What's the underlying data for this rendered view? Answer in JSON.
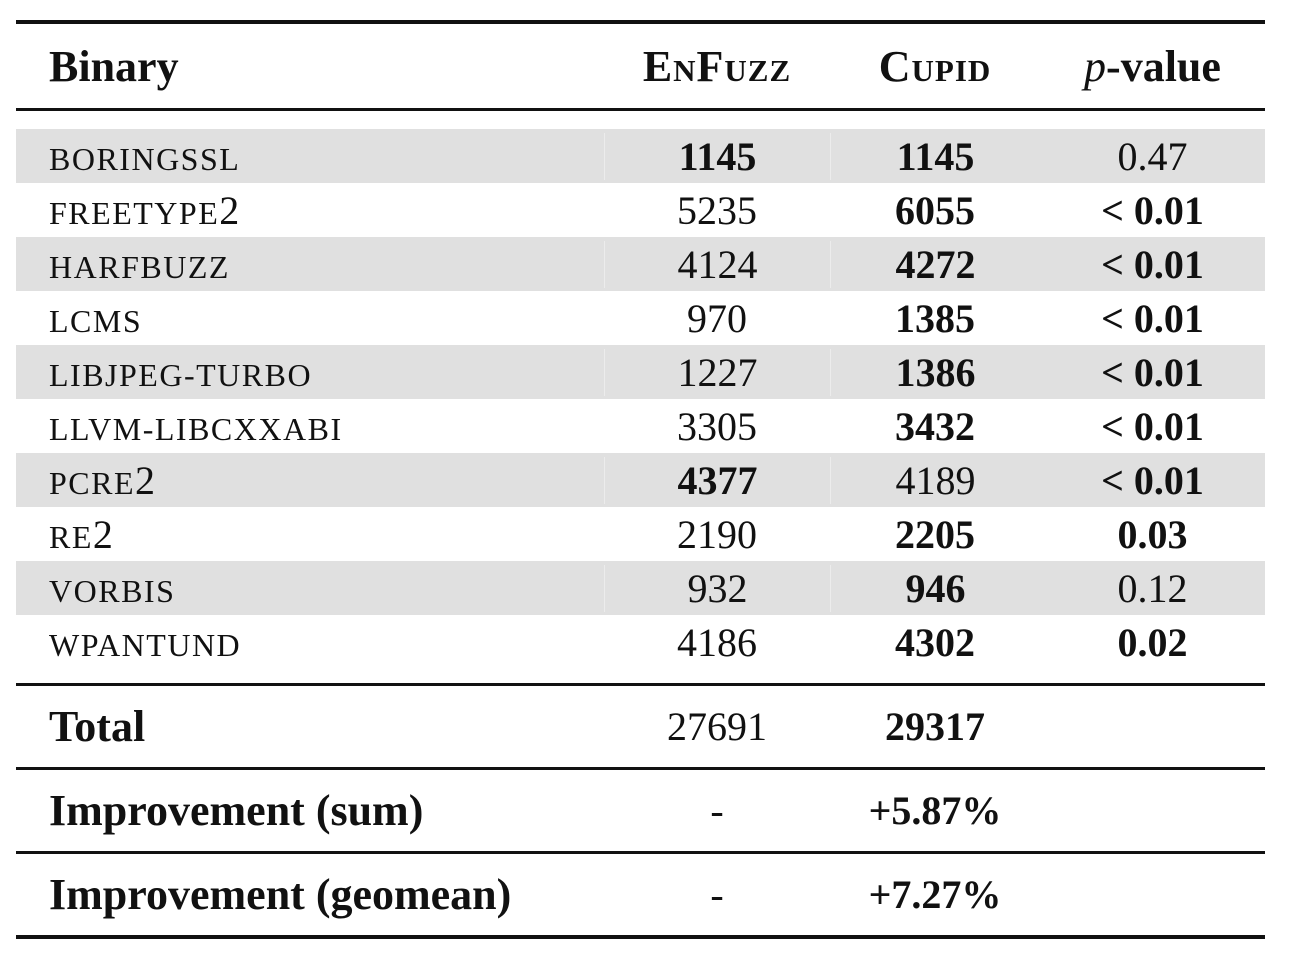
{
  "header": {
    "binary": "Binary",
    "enfuzz": "EnFuzz",
    "cupid": "Cupid",
    "p_italic": "p",
    "p_rest": "-value"
  },
  "rows": [
    {
      "name_text": "boringssl",
      "name_digit": "",
      "enfuzz": "1145",
      "cupid": "1145",
      "p": "0.47",
      "enfuzz_bold": true,
      "cupid_bold": true,
      "p_bold": false,
      "shaded": true
    },
    {
      "name_text": "freetype",
      "name_digit": "2",
      "enfuzz": "5235",
      "cupid": "6055",
      "p": "< 0.01",
      "enfuzz_bold": false,
      "cupid_bold": true,
      "p_bold": true,
      "shaded": false
    },
    {
      "name_text": "harfbuzz",
      "name_digit": "",
      "enfuzz": "4124",
      "cupid": "4272",
      "p": "< 0.01",
      "enfuzz_bold": false,
      "cupid_bold": true,
      "p_bold": true,
      "shaded": true
    },
    {
      "name_text": "lcms",
      "name_digit": "",
      "enfuzz": "970",
      "cupid": "1385",
      "p": "< 0.01",
      "enfuzz_bold": false,
      "cupid_bold": true,
      "p_bold": true,
      "shaded": false
    },
    {
      "name_text": "libjpeg-turbo",
      "name_digit": "",
      "enfuzz": "1227",
      "cupid": "1386",
      "p": "< 0.01",
      "enfuzz_bold": false,
      "cupid_bold": true,
      "p_bold": true,
      "shaded": true
    },
    {
      "name_text": "llvm-libcxxabi",
      "name_digit": "",
      "enfuzz": "3305",
      "cupid": "3432",
      "p": "< 0.01",
      "enfuzz_bold": false,
      "cupid_bold": true,
      "p_bold": true,
      "shaded": false
    },
    {
      "name_text": "pcre",
      "name_digit": "2",
      "enfuzz": "4377",
      "cupid": "4189",
      "p": "< 0.01",
      "enfuzz_bold": true,
      "cupid_bold": false,
      "p_bold": true,
      "shaded": true
    },
    {
      "name_text": "re",
      "name_digit": "2",
      "enfuzz": "2190",
      "cupid": "2205",
      "p": "0.03",
      "enfuzz_bold": false,
      "cupid_bold": true,
      "p_bold": true,
      "shaded": false
    },
    {
      "name_text": "vorbis",
      "name_digit": "",
      "enfuzz": "932",
      "cupid": "946",
      "p": "0.12",
      "enfuzz_bold": false,
      "cupid_bold": true,
      "p_bold": false,
      "shaded": true
    },
    {
      "name_text": "wpantund",
      "name_digit": "",
      "enfuzz": "4186",
      "cupid": "4302",
      "p": "0.02",
      "enfuzz_bold": false,
      "cupid_bold": true,
      "p_bold": true,
      "shaded": false
    }
  ],
  "summary": {
    "total": {
      "label": "Total",
      "enfuzz": "27691",
      "cupid": "29317"
    },
    "improvement_sum": {
      "label": "Improvement (sum)",
      "enfuzz": "-",
      "cupid": "+5.87%"
    },
    "improvement_geomean": {
      "label": "Improvement (geomean)",
      "enfuzz": "-",
      "cupid": "+7.27%"
    }
  }
}
